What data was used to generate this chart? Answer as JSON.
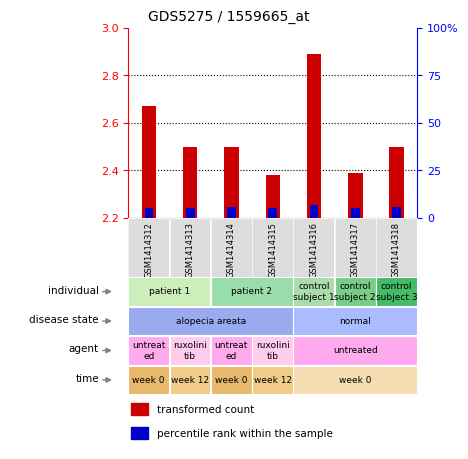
{
  "title": "GDS5275 / 1559665_at",
  "samples": [
    "GSM1414312",
    "GSM1414313",
    "GSM1414314",
    "GSM1414315",
    "GSM1414316",
    "GSM1414317",
    "GSM1414318"
  ],
  "transformed_count": [
    2.67,
    2.5,
    2.5,
    2.38,
    2.89,
    2.39,
    2.5
  ],
  "percentile_rank": [
    5,
    5,
    6,
    5,
    7,
    5,
    6
  ],
  "bar_bottom": 2.2,
  "ylim": [
    2.2,
    3.0
  ],
  "yticks_left": [
    2.2,
    2.4,
    2.6,
    2.8,
    3.0
  ],
  "yticks_right": [
    0,
    25,
    50,
    75,
    100
  ],
  "yticks_right_labels": [
    "0",
    "25",
    "50",
    "75",
    "100%"
  ],
  "bar_color_red": "#cc0000",
  "bar_color_blue": "#0000cc",
  "annotation_rows": [
    {
      "label": "individual",
      "cells": [
        {
          "text": "patient 1",
          "colspan": 2,
          "color": "#cceebb"
        },
        {
          "text": "patient 2",
          "colspan": 2,
          "color": "#99ddaa"
        },
        {
          "text": "control\nsubject 1",
          "colspan": 1,
          "color": "#aaddaa"
        },
        {
          "text": "control\nsubject 2",
          "colspan": 1,
          "color": "#77cc88"
        },
        {
          "text": "control\nsubject 3",
          "colspan": 1,
          "color": "#44bb66"
        }
      ]
    },
    {
      "label": "disease state",
      "cells": [
        {
          "text": "alopecia areata",
          "colspan": 4,
          "color": "#99aaee"
        },
        {
          "text": "normal",
          "colspan": 3,
          "color": "#aabbff"
        }
      ]
    },
    {
      "label": "agent",
      "cells": [
        {
          "text": "untreat\ned",
          "colspan": 1,
          "color": "#ffaaee"
        },
        {
          "text": "ruxolini\ntib",
          "colspan": 1,
          "color": "#ffccee"
        },
        {
          "text": "untreat\ned",
          "colspan": 1,
          "color": "#ffaaee"
        },
        {
          "text": "ruxolini\ntib",
          "colspan": 1,
          "color": "#ffccee"
        },
        {
          "text": "untreated",
          "colspan": 3,
          "color": "#ffaaee"
        }
      ]
    },
    {
      "label": "time",
      "cells": [
        {
          "text": "week 0",
          "colspan": 1,
          "color": "#e8b86d"
        },
        {
          "text": "week 12",
          "colspan": 1,
          "color": "#f0cc88"
        },
        {
          "text": "week 0",
          "colspan": 1,
          "color": "#e8b86d"
        },
        {
          "text": "week 12",
          "colspan": 1,
          "color": "#f0cc88"
        },
        {
          "text": "week 0",
          "colspan": 3,
          "color": "#f5deb3"
        }
      ]
    }
  ]
}
